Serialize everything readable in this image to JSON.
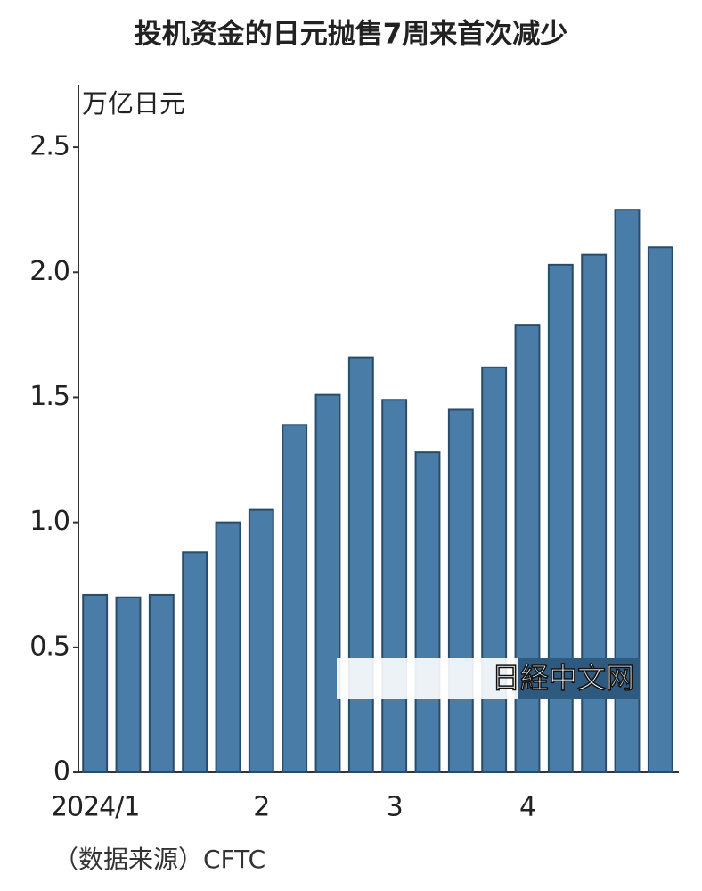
{
  "chart_data": {
    "type": "bar",
    "title": "投机资金的日元抛售7周来首次减少",
    "y_label": "万亿日元",
    "source": "（数据来源）CFTC",
    "watermark": "日経中文网",
    "categories": [
      "2024/1",
      null,
      null,
      null,
      null,
      "2",
      null,
      null,
      null,
      "3",
      null,
      null,
      null,
      "4",
      null,
      null,
      null,
      null
    ],
    "values": [
      0.71,
      0.7,
      0.71,
      0.88,
      1.0,
      1.05,
      1.39,
      1.51,
      1.66,
      1.49,
      1.28,
      1.45,
      1.62,
      1.79,
      2.03,
      2.07,
      2.25,
      2.1
    ],
    "color": "#4a7ca8",
    "ylim": [
      0,
      2.75
    ],
    "yticks": [
      0,
      0.5,
      {
        "value": 1,
        "label": "1.0"
      },
      1.5,
      {
        "value": 2,
        "label": "2.0"
      },
      2.5
    ],
    "grid": false
  }
}
